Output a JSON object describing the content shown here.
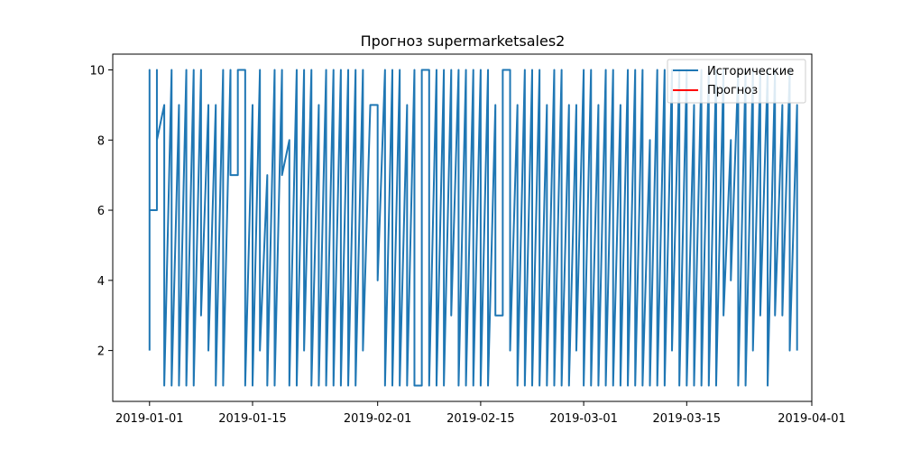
{
  "chart_data": {
    "type": "line",
    "title": "Прогноз supermarketsales2",
    "xlabel": "",
    "ylabel": "",
    "x_range": [
      "2018-12-27",
      "2019-04-01"
    ],
    "ylim": [
      0.55,
      10.45
    ],
    "x_ticks": [
      {
        "date": "2019-01-01",
        "label": "2019-01-01"
      },
      {
        "date": "2019-01-15",
        "label": "2019-01-15"
      },
      {
        "date": "2019-02-01",
        "label": "2019-02-01"
      },
      {
        "date": "2019-02-15",
        "label": "2019-02-15"
      },
      {
        "date": "2019-03-01",
        "label": "2019-03-01"
      },
      {
        "date": "2019-03-15",
        "label": "2019-03-15"
      },
      {
        "date": "2019-04-01",
        "label": "2019-04-01"
      }
    ],
    "y_ticks": [
      2,
      4,
      6,
      8,
      10
    ],
    "grid": false,
    "legend_position": "top-right",
    "start_date": "2019-01-01",
    "series": [
      {
        "name": "Исторические",
        "color": "#1f77b4",
        "points": [
          [
            "2019-01-01",
            2
          ],
          [
            "2019-01-01",
            10
          ],
          [
            "2019-01-01",
            6
          ],
          [
            "2019-01-02",
            6
          ],
          [
            "2019-01-02",
            10
          ],
          [
            "2019-01-02",
            8
          ],
          [
            "2019-01-03",
            9
          ],
          [
            "2019-01-03",
            1
          ],
          [
            "2019-01-04",
            10
          ],
          [
            "2019-01-04",
            1
          ],
          [
            "2019-01-05",
            9
          ],
          [
            "2019-01-05",
            1
          ],
          [
            "2019-01-06",
            10
          ],
          [
            "2019-01-06",
            1
          ],
          [
            "2019-01-07",
            10
          ],
          [
            "2019-01-07",
            1
          ],
          [
            "2019-01-08",
            10
          ],
          [
            "2019-01-08",
            3
          ],
          [
            "2019-01-09",
            9
          ],
          [
            "2019-01-09",
            2
          ],
          [
            "2019-01-10",
            9
          ],
          [
            "2019-01-10",
            1
          ],
          [
            "2019-01-11",
            10
          ],
          [
            "2019-01-11",
            1
          ],
          [
            "2019-01-12",
            10
          ],
          [
            "2019-01-12",
            7
          ],
          [
            "2019-01-13",
            7
          ],
          [
            "2019-01-13",
            10
          ],
          [
            "2019-01-14",
            10
          ],
          [
            "2019-01-14",
            1
          ],
          [
            "2019-01-15",
            9
          ],
          [
            "2019-01-15",
            1
          ],
          [
            "2019-01-16",
            10
          ],
          [
            "2019-01-16",
            2
          ],
          [
            "2019-01-17",
            7
          ],
          [
            "2019-01-17",
            1
          ],
          [
            "2019-01-18",
            10
          ],
          [
            "2019-01-18",
            1
          ],
          [
            "2019-01-19",
            10
          ],
          [
            "2019-01-19",
            7
          ],
          [
            "2019-01-20",
            8
          ],
          [
            "2019-01-20",
            1
          ],
          [
            "2019-01-21",
            10
          ],
          [
            "2019-01-21",
            1
          ],
          [
            "2019-01-22",
            10
          ],
          [
            "2019-01-22",
            2
          ],
          [
            "2019-01-23",
            10
          ],
          [
            "2019-01-23",
            1
          ],
          [
            "2019-01-24",
            9
          ],
          [
            "2019-01-24",
            1
          ],
          [
            "2019-01-25",
            10
          ],
          [
            "2019-01-25",
            1
          ],
          [
            "2019-01-26",
            10
          ],
          [
            "2019-01-26",
            1
          ],
          [
            "2019-01-27",
            10
          ],
          [
            "2019-01-27",
            1
          ],
          [
            "2019-01-28",
            10
          ],
          [
            "2019-01-28",
            1
          ],
          [
            "2019-01-29",
            10
          ],
          [
            "2019-01-29",
            1
          ],
          [
            "2019-01-30",
            10
          ],
          [
            "2019-01-30",
            2
          ],
          [
            "2019-01-31",
            9
          ],
          [
            "2019-02-01",
            9
          ],
          [
            "2019-02-01",
            4
          ],
          [
            "2019-02-02",
            10
          ],
          [
            "2019-02-02",
            1
          ],
          [
            "2019-02-03",
            10
          ],
          [
            "2019-02-03",
            1
          ],
          [
            "2019-02-04",
            10
          ],
          [
            "2019-02-04",
            1
          ],
          [
            "2019-02-05",
            9
          ],
          [
            "2019-02-05",
            1
          ],
          [
            "2019-02-06",
            10
          ],
          [
            "2019-02-06",
            1
          ],
          [
            "2019-02-07",
            1
          ],
          [
            "2019-02-07",
            10
          ],
          [
            "2019-02-08",
            10
          ],
          [
            "2019-02-08",
            1
          ],
          [
            "2019-02-09",
            10
          ],
          [
            "2019-02-09",
            1
          ],
          [
            "2019-02-10",
            10
          ],
          [
            "2019-02-10",
            1
          ],
          [
            "2019-02-11",
            10
          ],
          [
            "2019-02-11",
            3
          ],
          [
            "2019-02-12",
            10
          ],
          [
            "2019-02-12",
            1
          ],
          [
            "2019-02-13",
            10
          ],
          [
            "2019-02-13",
            1
          ],
          [
            "2019-02-14",
            10
          ],
          [
            "2019-02-14",
            1
          ],
          [
            "2019-02-15",
            10
          ],
          [
            "2019-02-15",
            1
          ],
          [
            "2019-02-16",
            10
          ],
          [
            "2019-02-16",
            1
          ],
          [
            "2019-02-17",
            9
          ],
          [
            "2019-02-17",
            3
          ],
          [
            "2019-02-18",
            3
          ],
          [
            "2019-02-18",
            10
          ],
          [
            "2019-02-19",
            10
          ],
          [
            "2019-02-19",
            2
          ],
          [
            "2019-02-20",
            9
          ],
          [
            "2019-02-20",
            1
          ],
          [
            "2019-02-21",
            10
          ],
          [
            "2019-02-21",
            1
          ],
          [
            "2019-02-22",
            10
          ],
          [
            "2019-02-22",
            1
          ],
          [
            "2019-02-23",
            10
          ],
          [
            "2019-02-23",
            1
          ],
          [
            "2019-02-24",
            9
          ],
          [
            "2019-02-24",
            1
          ],
          [
            "2019-02-25",
            10
          ],
          [
            "2019-02-25",
            1
          ],
          [
            "2019-02-26",
            10
          ],
          [
            "2019-02-26",
            1
          ],
          [
            "2019-02-27",
            9
          ],
          [
            "2019-02-27",
            1
          ],
          [
            "2019-02-28",
            9
          ],
          [
            "2019-02-28",
            2
          ],
          [
            "2019-03-01",
            10
          ],
          [
            "2019-03-01",
            1
          ],
          [
            "2019-03-02",
            10
          ],
          [
            "2019-03-02",
            1
          ],
          [
            "2019-03-03",
            9
          ],
          [
            "2019-03-03",
            1
          ],
          [
            "2019-03-04",
            10
          ],
          [
            "2019-03-04",
            1
          ],
          [
            "2019-03-05",
            10
          ],
          [
            "2019-03-05",
            1
          ],
          [
            "2019-03-06",
            9
          ],
          [
            "2019-03-06",
            1
          ],
          [
            "2019-03-07",
            10
          ],
          [
            "2019-03-07",
            1
          ],
          [
            "2019-03-08",
            10
          ],
          [
            "2019-03-08",
            1
          ],
          [
            "2019-03-09",
            10
          ],
          [
            "2019-03-09",
            1
          ],
          [
            "2019-03-10",
            8
          ],
          [
            "2019-03-10",
            1
          ],
          [
            "2019-03-11",
            10
          ],
          [
            "2019-03-11",
            1
          ],
          [
            "2019-03-12",
            10
          ],
          [
            "2019-03-12",
            1
          ],
          [
            "2019-03-13",
            10
          ],
          [
            "2019-03-13",
            2
          ],
          [
            "2019-03-14",
            10
          ],
          [
            "2019-03-14",
            1
          ],
          [
            "2019-03-15",
            10
          ],
          [
            "2019-03-15",
            1
          ],
          [
            "2019-03-16",
            9
          ],
          [
            "2019-03-16",
            1
          ],
          [
            "2019-03-17",
            10
          ],
          [
            "2019-03-17",
            1
          ],
          [
            "2019-03-18",
            10
          ],
          [
            "2019-03-18",
            1
          ],
          [
            "2019-03-19",
            10
          ],
          [
            "2019-03-19",
            1
          ],
          [
            "2019-03-20",
            10
          ],
          [
            "2019-03-20",
            3
          ],
          [
            "2019-03-21",
            8
          ],
          [
            "2019-03-21",
            4
          ],
          [
            "2019-03-22",
            10
          ],
          [
            "2019-03-22",
            1
          ],
          [
            "2019-03-23",
            10
          ],
          [
            "2019-03-23",
            1
          ],
          [
            "2019-03-24",
            10
          ],
          [
            "2019-03-24",
            2
          ],
          [
            "2019-03-25",
            10
          ],
          [
            "2019-03-25",
            3
          ],
          [
            "2019-03-26",
            10
          ],
          [
            "2019-03-26",
            1
          ],
          [
            "2019-03-27",
            10
          ],
          [
            "2019-03-27",
            3
          ],
          [
            "2019-03-28",
            9
          ],
          [
            "2019-03-28",
            3
          ],
          [
            "2019-03-29",
            10
          ],
          [
            "2019-03-29",
            2
          ],
          [
            "2019-03-30",
            9
          ],
          [
            "2019-03-30",
            2
          ]
        ]
      },
      {
        "name": "Прогноз",
        "color": "#ff0000",
        "points": []
      }
    ]
  }
}
